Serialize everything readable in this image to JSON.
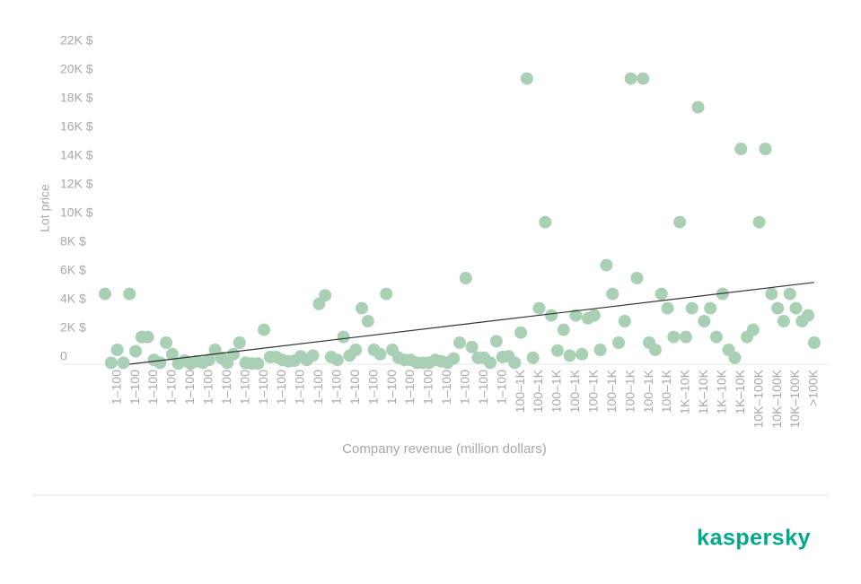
{
  "chart_data": {
    "type": "scatter",
    "y_label": "Lot price",
    "x_label": "Company revenue (million dollars)",
    "categories": [
      null,
      null,
      "1–100",
      null,
      null,
      "1–100",
      null,
      null,
      "1–100",
      null,
      null,
      "1–100",
      null,
      null,
      "1–100",
      null,
      null,
      "1–100",
      null,
      null,
      "1–100",
      null,
      null,
      "1–100",
      null,
      null,
      "1–100",
      null,
      null,
      "1–100",
      null,
      null,
      "1–100",
      null,
      null,
      "1–100",
      null,
      null,
      "1–100",
      null,
      null,
      "1–100",
      null,
      null,
      "1–100",
      null,
      null,
      "1–100",
      null,
      null,
      "1–100",
      null,
      null,
      "1–100",
      null,
      null,
      "1–100",
      null,
      null,
      "1–100",
      null,
      null,
      "1–100",
      null,
      null,
      "1–100",
      null,
      null,
      "100–1K",
      null,
      null,
      "100–1K",
      null,
      null,
      "100–1K",
      null,
      null,
      "100–1K",
      null,
      null,
      "100–1K",
      null,
      null,
      "100–1K",
      null,
      null,
      "100–1K",
      null,
      null,
      "100–1K",
      null,
      null,
      "100–1K",
      null,
      null,
      "1K–10K",
      null,
      null,
      "1K–10K",
      null,
      null,
      "1K–10K",
      null,
      null,
      "1K–10K",
      null,
      null,
      "10K–100K",
      null,
      null,
      "10K–100K",
      null,
      null,
      "10K–100K",
      null,
      null,
      ">100K"
    ],
    "values": [
      4900,
      100,
      1000,
      100,
      4900,
      900,
      1900,
      1900,
      300,
      100,
      1500,
      700,
      50,
      250,
      50,
      200,
      100,
      300,
      1000,
      450,
      100,
      700,
      1500,
      100,
      50,
      50,
      2400,
      500,
      500,
      300,
      200,
      250,
      550,
      300,
      600,
      4200,
      4800,
      500,
      300,
      1900,
      600,
      1000,
      3900,
      3000,
      1000,
      700,
      4900,
      1000,
      450,
      300,
      300,
      100,
      100,
      100,
      300,
      200,
      100,
      400,
      1500,
      6000,
      1200,
      450,
      450,
      100,
      1600,
      500,
      550,
      100,
      2200,
      19900,
      450,
      3900,
      9900,
      3400,
      950,
      2400,
      600,
      3400,
      700,
      3200,
      3400,
      1000,
      6900,
      4900,
      1500,
      3000,
      19900,
      6000,
      19900,
      1500,
      1000,
      4900,
      3900,
      1900,
      9900,
      1900,
      3900,
      17900,
      3000,
      3900,
      1900,
      4900,
      1000,
      450,
      15000,
      1900,
      2400,
      9900,
      15000,
      4900,
      3900,
      3000,
      4900,
      3900,
      3000,
      3400,
      1500
    ],
    "color": "#a9d0b5",
    "trend": {
      "x": [
        4,
        116
      ],
      "values": [
        0,
        5700
      ],
      "color": "#333333"
    },
    "ylim": [
      0,
      22000
    ],
    "yticks": [
      0,
      {
        "value": 2000,
        "label": "2K $"
      },
      {
        "value": 4000,
        "label": "4K $"
      },
      {
        "value": 6000,
        "label": "6K $"
      },
      {
        "value": 8000,
        "label": "8K $"
      },
      {
        "value": 10000,
        "label": "10K $"
      },
      {
        "value": 12000,
        "label": "12K $"
      },
      {
        "value": 14000,
        "label": "14K $"
      },
      {
        "value": 16000,
        "label": "16K $"
      },
      {
        "value": 18000,
        "label": "18K $"
      },
      {
        "value": 20000,
        "label": "20K $"
      },
      {
        "value": 22000,
        "label": "22K $"
      }
    ],
    "grid": false
  },
  "brand": "kaspersky"
}
